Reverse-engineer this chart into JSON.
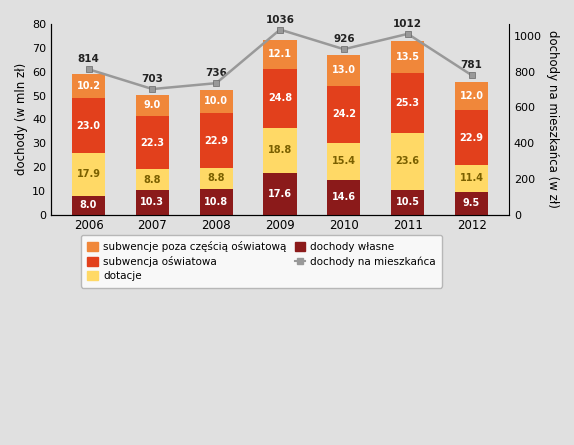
{
  "years": [
    2006,
    2007,
    2008,
    2009,
    2010,
    2011,
    2012
  ],
  "dochody_wlasne": [
    8.0,
    10.3,
    10.8,
    17.6,
    14.6,
    10.5,
    9.5
  ],
  "dotacje": [
    17.9,
    8.8,
    8.8,
    18.8,
    15.4,
    23.6,
    11.4
  ],
  "subwencja_oswiatowa": [
    23.0,
    22.3,
    22.9,
    24.8,
    24.2,
    25.3,
    22.9
  ],
  "subwencje_poza": [
    10.2,
    9.0,
    10.0,
    12.1,
    13.0,
    13.5,
    12.0
  ],
  "per_capita": [
    814,
    703,
    736,
    1036,
    926,
    1012,
    781
  ],
  "color_dochody_wlasne": "#8B1A1A",
  "color_dotacje": "#FFD966",
  "color_subwencja_oswiatowa": "#E2401C",
  "color_subwencje_poza": "#F0873A",
  "color_line": "#999999",
  "color_bg": "#E0E0E0",
  "ylabel_left": "dochody (w mln zł)",
  "ylabel_right": "dochody na mieszkańca (w zł)",
  "ylim_left": [
    0,
    80
  ],
  "ylim_right": [
    0,
    1067
  ],
  "legend_labels": [
    "subwencje poza częścią oświatową",
    "subwencja oświatowa",
    "dotacje",
    "dochody własne",
    "dochody na mieszkańca"
  ],
  "bar_width": 0.52
}
